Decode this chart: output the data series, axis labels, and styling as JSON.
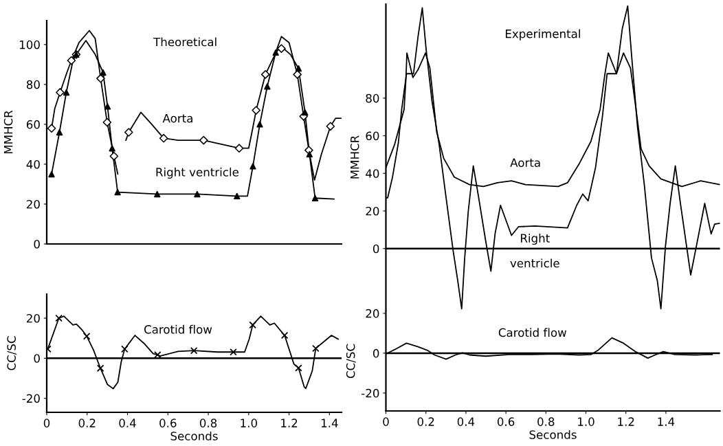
{
  "chart_data": [
    {
      "type": "line",
      "title": "Theoretical",
      "ylabel": "MMHCR",
      "xlim": [
        0,
        1.46
      ],
      "ylim": [
        0,
        112
      ],
      "yticks": [
        0,
        20,
        40,
        60,
        80,
        100
      ],
      "tick_labels": "y",
      "series": [
        {
          "name": "Aorta",
          "color": "#000000",
          "x": [
            0.024,
            0.04,
            0.066,
            0.1,
            0.122,
            0.16,
            0.211,
            0.24,
            0.267,
            0.299,
            0.333,
            0.352,
            0.37,
            0.392,
            0.406,
            0.466,
            0.52,
            0.579,
            0.65,
            0.777,
            0.953,
            1.0,
            1.02,
            1.037,
            1.083,
            1.13,
            1.162,
            1.2,
            1.241,
            1.272,
            1.298,
            1.326,
            1.36,
            1.405,
            1.43,
            1.457
          ],
          "values": [
            58,
            68,
            76,
            86,
            92,
            101,
            107,
            103,
            83,
            61,
            44,
            35,
            null,
            52,
            56,
            66,
            60,
            53,
            52,
            52,
            48,
            48,
            58,
            67,
            85,
            95,
            104,
            101,
            85,
            64,
            47,
            32,
            45,
            59,
            63,
            63
          ]
        },
        {
          "name": "Right ventricle",
          "color": "#000000",
          "x": [
            0.024,
            0.063,
            0.097,
            0.13,
            0.146,
            0.194,
            0.24,
            0.279,
            0.301,
            0.324,
            0.34,
            0.351,
            0.547,
            0.745,
            0.942,
            0.994,
            1.021,
            1.055,
            1.092,
            1.134,
            1.162,
            1.207,
            1.247,
            1.279,
            1.301,
            1.329,
            1.423
          ],
          "values": [
            35,
            56,
            76,
            92,
            95,
            102,
            95,
            86,
            69,
            48,
            35,
            26,
            25,
            25,
            24,
            24,
            39,
            60,
            79,
            96,
            99,
            95,
            88,
            66,
            45,
            23,
            22.5
          ]
        },
        {
          "type": "scatter",
          "marker": "diamond",
          "color": "#000000",
          "x": [
            0.024,
            0.066,
            0.122,
            0.146,
            0.267,
            0.299,
            0.333,
            0.406,
            0.579,
            0.777,
            0.953,
            1.037,
            1.083,
            1.162,
            1.241,
            1.272,
            1.298,
            1.405
          ],
          "values": [
            58,
            76,
            92,
            95,
            83,
            61,
            44,
            56,
            53,
            52,
            48,
            67,
            85,
            98,
            85,
            64,
            47,
            59
          ]
        },
        {
          "type": "scatter",
          "marker": "triangle",
          "color": "#000000",
          "x": [
            0.024,
            0.063,
            0.097,
            0.146,
            0.279,
            0.301,
            0.324,
            0.351,
            0.547,
            0.745,
            0.942,
            1.021,
            1.055,
            1.092,
            1.134,
            1.247,
            1.279,
            1.301,
            1.329
          ],
          "values": [
            35,
            56,
            76,
            95,
            86,
            69,
            48,
            26,
            25,
            25,
            24,
            39,
            60,
            79,
            96,
            88,
            66,
            45,
            23
          ]
        }
      ]
    },
    {
      "type": "line",
      "xlabel": "Seconds",
      "ylabel": "CC/SC",
      "xlim": [
        0,
        1.46
      ],
      "ylim": [
        -27,
        32
      ],
      "xticks": [
        0,
        0.2,
        0.4,
        0.6,
        0.8,
        {
          "value": 1,
          "label": "1.0"
        },
        1.2,
        1.4
      ],
      "yticks": [
        -20,
        0,
        20
      ],
      "series": [
        {
          "name": "Carotid flow",
          "color": "#000000",
          "x": [
            0.005,
            0.06,
            0.085,
            0.13,
            0.147,
            0.176,
            0.198,
            0.232,
            0.249,
            0.266,
            0.3,
            0.329,
            0.352,
            0.369,
            0.386,
            0.437,
            0.482,
            0.527,
            0.549,
            0.561,
            0.65,
            0.729,
            0.845,
            0.924,
            0.98,
            1.003,
            1.02,
            1.06,
            1.105,
            1.127,
            1.178,
            1.224,
            1.247,
            1.275,
            1.283,
            1.315,
            1.332,
            1.41,
            1.444
          ],
          "values": [
            4.6,
            20,
            21,
            16.6,
            17,
            14,
            11,
            4,
            -0.6,
            -5,
            -13,
            -15.2,
            -12,
            -1.7,
            4.6,
            11.4,
            7.4,
            2.3,
            1.7,
            1.1,
            3.4,
            3.8,
            3.1,
            3.1,
            3.1,
            9.7,
            16.6,
            21,
            16.6,
            17.5,
            11.4,
            -2.9,
            -4.9,
            -14.3,
            -15.1,
            -6.3,
            4.9,
            11.4,
            9.5
          ]
        },
        {
          "type": "scatter",
          "marker": "cross",
          "color": "#000000",
          "x": [
            0.005,
            0.06,
            0.198,
            0.266,
            0.386,
            0.549,
            0.729,
            0.924,
            1.02,
            1.178,
            1.247,
            1.332
          ],
          "values": [
            4.6,
            20,
            11,
            -5,
            4.6,
            1.7,
            3.8,
            3.1,
            16.6,
            11.4,
            -4.9,
            4.9
          ]
        }
      ],
      "ref_lines": [
        {
          "axis": "y",
          "value": 0,
          "color": "#000000"
        }
      ]
    },
    {
      "type": "line",
      "title": "Experimental",
      "ylabel": "MMHCR",
      "xlim": [
        0,
        1.67
      ],
      "ylim": [
        -33,
        130
      ],
      "yticks": [
        0,
        20,
        40,
        60,
        80
      ],
      "tick_labels": "y",
      "series": [
        {
          "name": "Aorta",
          "color": "#000000",
          "x": [
            0,
            0.044,
            0.091,
            0.1,
            0.105,
            0.135,
            0.16,
            0.198,
            0.22,
            0.254,
            0.289,
            0.342,
            0.418,
            0.488,
            0.558,
            0.628,
            0.698,
            0.861,
            0.908,
            0.966,
            1.025,
            1.071,
            1.094,
            1.112,
            1.153,
            1.188,
            1.223,
            1.247,
            1.276,
            1.316,
            1.375,
            1.48,
            1.573,
            1.67
          ],
          "values": [
            43,
            55.5,
            74,
            90,
            104,
            91,
            95,
            104,
            96,
            62,
            48,
            38,
            34,
            33,
            35,
            36,
            34,
            33,
            35,
            45,
            57,
            74,
            92,
            104,
            93,
            104,
            96,
            77,
            53,
            44,
            37,
            33,
            36,
            34
          ]
        },
        {
          "name": "Right ventricle",
          "color": "#000000",
          "x": [
            0,
            0.009,
            0.033,
            0.062,
            0.079,
            0.103,
            0.138,
            0.161,
            0.182,
            0.202,
            0.231,
            0.266,
            0.301,
            0.336,
            0.359,
            0.379,
            0.394,
            0.412,
            0.437,
            0.464,
            0.499,
            0.525,
            0.546,
            0.573,
            0.628,
            0.663,
            0.745,
            0.908,
            0.954,
            0.984,
            1.011,
            1.048,
            1.083,
            1.106,
            1.153,
            1.182,
            1.209,
            1.229,
            1.258,
            1.293,
            1.328,
            1.357,
            1.375,
            1.398,
            1.421,
            1.447,
            1.474,
            1.503,
            1.524,
            1.562,
            1.594,
            1.626,
            1.644,
            1.67
          ],
          "values": [
            27,
            27,
            38,
            56,
            74,
            93,
            93,
            113,
            128,
            105,
            78,
            55.5,
            27,
            -1,
            -17,
            -32,
            -5,
            20,
            44,
            27,
            4,
            -12,
            8,
            23,
            7,
            11.6,
            12,
            11,
            23,
            29,
            25.4,
            43,
            70.6,
            93,
            93,
            117,
            129,
            102,
            64.7,
            33,
            -5,
            -17,
            -32,
            1.5,
            24,
            44,
            23,
            1.5,
            -14,
            6.5,
            24,
            7.8,
            13,
            13.5
          ]
        }
      ],
      "ref_lines": [
        {
          "axis": "y",
          "value": 0,
          "color": "#000000"
        }
      ]
    },
    {
      "type": "line",
      "xlabel": "Seconds",
      "ylabel": "CC/SC",
      "xlim": [
        0,
        1.67
      ],
      "ylim": [
        -29,
        21
      ],
      "xticks": [
        0,
        0.2,
        0.4,
        0.6,
        0.8,
        {
          "value": 1,
          "label": "1.0"
        },
        1.2,
        1.4
      ],
      "yticks": [
        -20,
        0,
        20
      ],
      "series": [
        {
          "name": "Carotid flow",
          "color": "#000000",
          "x": [
            0,
            0.044,
            0.103,
            0.161,
            0.208,
            0.243,
            0.301,
            0.348,
            0.383,
            0.418,
            0.499,
            0.616,
            0.733,
            0.85,
            0.966,
            1.025,
            1.06,
            1.13,
            1.188,
            1.247,
            1.31,
            1.346,
            1.387,
            1.445,
            1.55,
            1.632
          ],
          "values": [
            -0.4,
            1.8,
            5,
            3.2,
            1.4,
            -0.9,
            -3,
            -0.9,
            0.2,
            -0.9,
            -1.5,
            -0.7,
            -0.7,
            -0.4,
            -0.9,
            -0.7,
            1.4,
            7.7,
            5,
            0.8,
            -2.5,
            -0.9,
            0.8,
            -0.7,
            -0.9,
            -0.7
          ]
        }
      ],
      "ref_lines": [
        {
          "axis": "y",
          "value": 0,
          "color": "#000000"
        }
      ]
    }
  ]
}
